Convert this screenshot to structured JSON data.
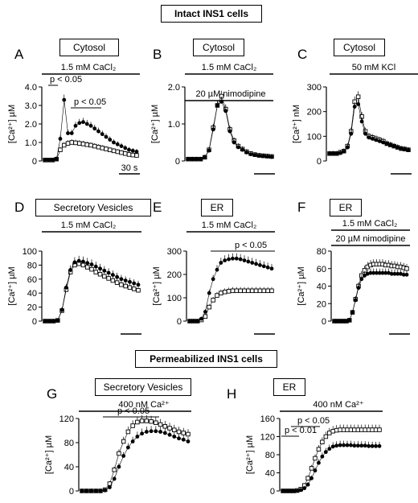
{
  "sections": {
    "intact": "Intact INS1 cells",
    "permeabilized": "Permeabilized INS1 cells"
  },
  "chart_data": [
    {
      "id": "A",
      "type": "scatter",
      "compartment": "Cytosol",
      "treatment": "1.5 mM CaCl2",
      "treatment_extra": "",
      "ylabel": "[Ca2+] µM",
      "ylim": [
        0,
        4.0
      ],
      "yticks": [
        0,
        1.0,
        2.0,
        3.0,
        4.0
      ],
      "ytick_labels": [
        "0",
        "1.0",
        "2.0",
        "3.0",
        "4.0"
      ],
      "scale_bar": "30 s",
      "annotations": [
        "p < 0.05",
        "p < 0.05"
      ],
      "series": [
        {
          "marker": "open",
          "values": [
            0.05,
            0.05,
            0.05,
            0.1,
            0.6,
            0.85,
            0.95,
            1.0,
            0.98,
            0.95,
            0.92,
            0.88,
            0.85,
            0.8,
            0.75,
            0.7,
            0.65,
            0.6,
            0.55,
            0.5,
            0.45,
            0.4,
            0.35,
            0.32,
            0.3
          ]
        },
        {
          "marker": "filled",
          "values": [
            0.05,
            0.05,
            0.05,
            0.1,
            1.2,
            3.3,
            1.5,
            1.5,
            1.9,
            2.05,
            2.1,
            2.0,
            1.9,
            1.75,
            1.6,
            1.45,
            1.3,
            1.15,
            1.0,
            0.9,
            0.8,
            0.7,
            0.6,
            0.55,
            0.5
          ]
        }
      ]
    },
    {
      "id": "B",
      "type": "scatter",
      "compartment": "Cytosol",
      "treatment": "1.5 mM CaCl2",
      "treatment_extra": "20 µM nimodipine",
      "ylabel": "[Ca2+] µM",
      "ylim": [
        0,
        2.0
      ],
      "yticks": [
        0,
        1.0,
        2.0
      ],
      "ytick_labels": [
        "0",
        "1.0",
        "2.0"
      ],
      "scale_bar": "",
      "annotations": [],
      "series": [
        {
          "marker": "open",
          "values": [
            0.05,
            0.05,
            0.05,
            0.05,
            0.1,
            0.3,
            0.9,
            1.5,
            1.75,
            1.4,
            0.85,
            0.55,
            0.4,
            0.32,
            0.25,
            0.2,
            0.17,
            0.15,
            0.14,
            0.13,
            0.12
          ]
        },
        {
          "marker": "filled",
          "values": [
            0.05,
            0.05,
            0.05,
            0.05,
            0.1,
            0.28,
            0.85,
            1.5,
            1.6,
            1.35,
            0.8,
            0.5,
            0.37,
            0.3,
            0.23,
            0.18,
            0.16,
            0.14,
            0.13,
            0.12,
            0.11
          ]
        }
      ]
    },
    {
      "id": "C",
      "type": "scatter",
      "compartment": "Cytosol",
      "treatment": "50 mM KCl",
      "treatment_extra": "",
      "ylabel": "[Ca2+] nM",
      "ylim": [
        0,
        300
      ],
      "yticks": [
        0,
        100,
        200,
        300
      ],
      "ytick_labels": [
        "0",
        "100",
        "200",
        "300"
      ],
      "scale_bar": "",
      "annotations": [],
      "series": [
        {
          "marker": "open",
          "values": [
            30,
            30,
            30,
            35,
            40,
            60,
            120,
            240,
            260,
            180,
            120,
            100,
            95,
            90,
            85,
            80,
            70,
            65,
            60,
            55,
            50,
            48,
            45
          ]
        },
        {
          "marker": "filled",
          "values": [
            30,
            30,
            30,
            32,
            38,
            55,
            110,
            220,
            230,
            160,
            110,
            95,
            90,
            85,
            80,
            75,
            70,
            65,
            60,
            55,
            50,
            47,
            44
          ]
        }
      ]
    },
    {
      "id": "D",
      "type": "scatter",
      "compartment": "Secretory Vesicles",
      "treatment": "1.5 mM CaCl2",
      "treatment_extra": "",
      "ylabel": "[Ca2+] µM",
      "ylim": [
        0,
        100
      ],
      "yticks": [
        0,
        20,
        40,
        60,
        80,
        100
      ],
      "ytick_labels": [
        "0",
        "20",
        "40",
        "60",
        "80",
        "100"
      ],
      "scale_bar": "",
      "annotations": [],
      "series": [
        {
          "marker": "open",
          "values": [
            0,
            0,
            0,
            1,
            15,
            45,
            70,
            80,
            82,
            80,
            77,
            74,
            70,
            67,
            64,
            61,
            58,
            55,
            52,
            50,
            48,
            46,
            44
          ]
        },
        {
          "marker": "filled",
          "values": [
            0,
            0,
            0,
            1,
            16,
            48,
            73,
            84,
            86,
            85,
            83,
            81,
            78,
            75,
            72,
            69,
            66,
            63,
            60,
            58,
            56,
            54,
            52
          ]
        }
      ]
    },
    {
      "id": "E",
      "type": "scatter",
      "compartment": "ER",
      "treatment": "1.5 mM CaCl2",
      "treatment_extra": "",
      "ylabel": "[Ca2+] µM",
      "ylim": [
        0,
        300
      ],
      "yticks": [
        0,
        100,
        200,
        300
      ],
      "ytick_labels": [
        "0",
        "100",
        "200",
        "300"
      ],
      "scale_bar": "",
      "annotations": [
        "p < 0.05"
      ],
      "series": [
        {
          "marker": "open",
          "values": [
            0,
            0,
            0,
            5,
            20,
            60,
            90,
            110,
            120,
            125,
            128,
            130,
            130,
            130,
            130,
            130,
            130,
            130,
            130,
            130,
            130,
            130
          ]
        },
        {
          "marker": "filled",
          "values": [
            0,
            0,
            0,
            10,
            40,
            120,
            180,
            220,
            250,
            260,
            265,
            268,
            268,
            265,
            260,
            255,
            250,
            245,
            240,
            235,
            230,
            225
          ]
        }
      ]
    },
    {
      "id": "F",
      "type": "scatter",
      "compartment": "ER",
      "treatment": "1.5 mM CaCl2",
      "treatment_extra": "20 µM nimodipine",
      "ylabel": "[Ca2+] µM",
      "ylim": [
        0,
        80
      ],
      "yticks": [
        0,
        20,
        40,
        60,
        80
      ],
      "ytick_labels": [
        "0",
        "20",
        "40",
        "60",
        "80"
      ],
      "scale_bar": "",
      "annotations": [],
      "series": [
        {
          "marker": "open",
          "values": [
            0,
            0,
            0,
            0,
            0,
            1,
            10,
            25,
            40,
            52,
            58,
            62,
            64,
            65,
            65,
            65,
            65,
            64,
            64,
            63,
            63,
            62,
            62,
            61,
            60
          ]
        },
        {
          "marker": "filled",
          "values": [
            0,
            0,
            0,
            0,
            0,
            1,
            10,
            24,
            38,
            48,
            52,
            54,
            55,
            55,
            55,
            55,
            55,
            55,
            55,
            54,
            54,
            54,
            54,
            53,
            53
          ]
        }
      ]
    },
    {
      "id": "G",
      "type": "scatter",
      "compartment": "Secretory Vesicles",
      "treatment": "400 nM Ca2+",
      "treatment_extra": "",
      "ylabel": "[Ca2+] µM",
      "ylim": [
        0,
        120
      ],
      "yticks": [
        0,
        40,
        80,
        120
      ],
      "ytick_labels": [
        "0",
        "40",
        "80",
        "120"
      ],
      "scale_bar": "",
      "annotations": [
        "p < 0.05"
      ],
      "series": [
        {
          "marker": "open",
          "values": [
            0,
            0,
            0,
            0,
            0,
            2,
            12,
            35,
            62,
            82,
            98,
            108,
            114,
            116,
            116,
            115,
            113,
            110,
            107,
            104,
            101,
            98,
            96,
            94
          ]
        },
        {
          "marker": "filled",
          "values": [
            0,
            0,
            0,
            0,
            0,
            1,
            6,
            20,
            40,
            58,
            72,
            82,
            90,
            95,
            98,
            99,
            99,
            98,
            96,
            93,
            90,
            87,
            85,
            82
          ]
        }
      ]
    },
    {
      "id": "H",
      "type": "scatter",
      "compartment": "ER",
      "treatment": "400 nM Ca2+",
      "treatment_extra": "",
      "ylabel": "[Ca2+] µM",
      "ylim": [
        0,
        160
      ],
      "yticks": [
        0,
        40,
        80,
        120,
        160
      ],
      "ytick_labels": [
        "0",
        "40",
        "80",
        "120",
        "160"
      ],
      "scale_bar": "",
      "annotations": [
        "p < 0.01",
        "p < 0.05"
      ],
      "series": [
        {
          "marker": "open",
          "values": [
            0,
            0,
            0,
            0,
            1,
            4,
            12,
            28,
            50,
            72,
            92,
            108,
            120,
            128,
            132,
            134,
            135,
            135,
            135,
            135,
            135,
            135,
            135,
            135,
            135,
            135,
            135,
            135
          ]
        },
        {
          "marker": "filled",
          "values": [
            0,
            0,
            0,
            0,
            0,
            2,
            6,
            14,
            28,
            45,
            62,
            76,
            86,
            93,
            98,
            100,
            101,
            101,
            101,
            101,
            100,
            100,
            100,
            100,
            99,
            99,
            99,
            99
          ]
        }
      ]
    }
  ]
}
